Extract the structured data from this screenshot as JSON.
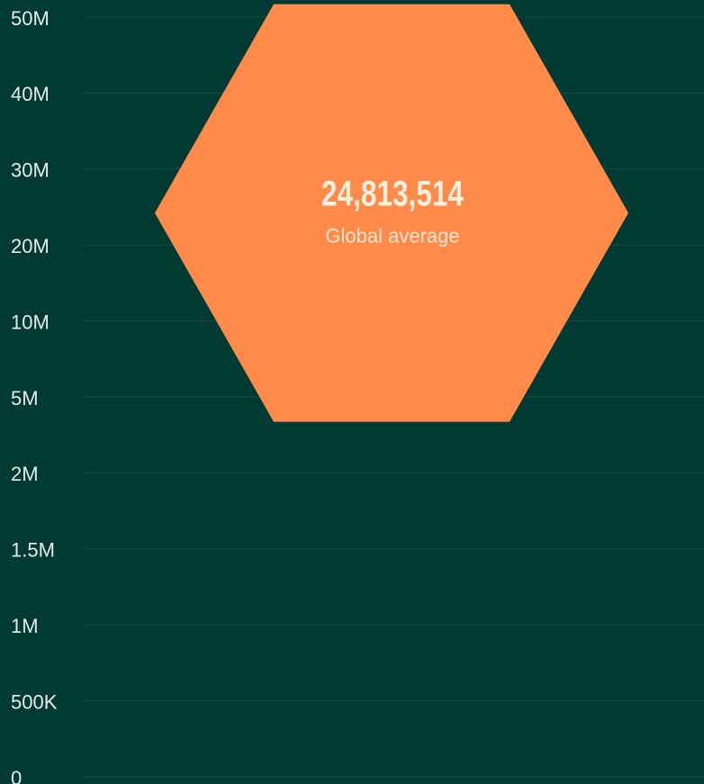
{
  "chart_data": {
    "type": "hexagon",
    "categories": [
      "Global average"
    ],
    "values": [
      24813514
    ],
    "value_labels": [
      "24,813,514"
    ],
    "color": "#ff8a4a",
    "ylim": [
      0,
      50000000
    ],
    "yticks": [
      {
        "value": 50000000,
        "label": "50M"
      },
      {
        "value": 40000000,
        "label": "40M"
      },
      {
        "value": 30000000,
        "label": "30M"
      },
      {
        "value": 20000000,
        "label": "20M"
      },
      {
        "value": 10000000,
        "label": "10M"
      },
      {
        "value": 5000000,
        "label": "5M"
      },
      {
        "value": 2000000,
        "label": "2M"
      },
      {
        "value": 1500000,
        "label": "1.5M"
      },
      {
        "value": 1000000,
        "label": "1M"
      },
      {
        "value": 500000,
        "label": "500K"
      },
      0
    ],
    "grid": true
  }
}
